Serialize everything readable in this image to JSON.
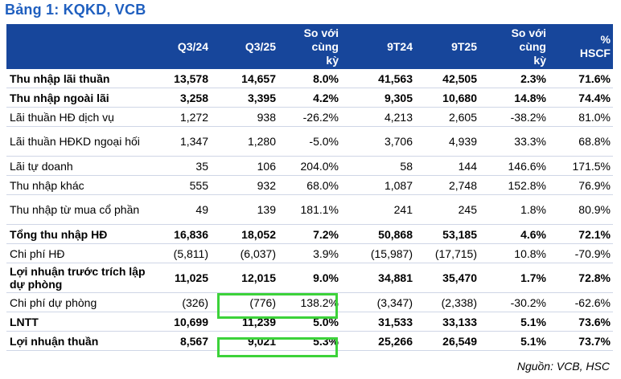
{
  "title": "Bảng 1: KQKD, VCB",
  "columns": [
    "",
    "Q3/24",
    "Q3/25",
    "So với\ncùng\nkỳ",
    "9T24",
    "9T25",
    "So với\ncùng\nkỳ",
    "%\nHSCF"
  ],
  "rows": [
    {
      "label": "Thu nhập lãi thuần",
      "bold": true,
      "cells": [
        "13,578",
        "14,657",
        "8.0%",
        "41,563",
        "42,505",
        "2.3%",
        "71.6%"
      ]
    },
    {
      "label": "Thu nhập ngoài lãi",
      "bold": true,
      "cells": [
        "3,258",
        "3,395",
        "4.2%",
        "9,305",
        "10,680",
        "14.8%",
        "74.4%"
      ]
    },
    {
      "label": "Lãi thuần HĐ dịch vụ",
      "bold": false,
      "cells": [
        "1,272",
        "938",
        "-26.2%",
        "4,213",
        "2,605",
        "-38.2%",
        "81.0%"
      ]
    },
    {
      "label": "Lãi thuần HĐKD ngoại hối",
      "bold": false,
      "tall": true,
      "cells": [
        "1,347",
        "1,280",
        "-5.0%",
        "3,706",
        "4,939",
        "33.3%",
        "68.8%"
      ]
    },
    {
      "label": "Lãi tự doanh",
      "bold": false,
      "cells": [
        "35",
        "106",
        "204.0%",
        "58",
        "144",
        "146.6%",
        "171.5%"
      ]
    },
    {
      "label": "Thu nhập khác",
      "bold": false,
      "cells": [
        "555",
        "932",
        "68.0%",
        "1,087",
        "2,748",
        "152.8%",
        "76.9%"
      ]
    },
    {
      "label": "Thu nhập từ mua cổ phần",
      "bold": false,
      "tall": true,
      "cells": [
        "49",
        "139",
        "181.1%",
        "241",
        "245",
        "1.8%",
        "80.9%"
      ]
    },
    {
      "label": "Tổng thu nhập HĐ",
      "bold": true,
      "cells": [
        "16,836",
        "18,052",
        "7.2%",
        "50,868",
        "53,185",
        "4.6%",
        "72.1%"
      ]
    },
    {
      "label": "Chi phí HĐ",
      "bold": false,
      "cells": [
        "(5,811)",
        "(6,037)",
        "3.9%",
        "(15,987)",
        "(17,715)",
        "10.8%",
        "-70.9%"
      ]
    },
    {
      "label": "Lợi nhuận trước trích lập dự phòng",
      "bold": true,
      "tall": true,
      "cells": [
        "11,025",
        "12,015",
        "9.0%",
        "34,881",
        "35,470",
        "1.7%",
        "72.8%"
      ]
    },
    {
      "label": "Chi phí dự phòng",
      "bold": false,
      "cells": [
        "(326)",
        "(776)",
        "138.2%",
        "(3,347)",
        "(2,338)",
        "-30.2%",
        "-62.6%"
      ]
    },
    {
      "label": "LNTT",
      "bold": true,
      "cells": [
        "10,699",
        "11,239",
        "5.0%",
        "31,533",
        "33,133",
        "5.1%",
        "73.6%"
      ]
    },
    {
      "label": "Lợi nhuận thuần",
      "bold": true,
      "cells": [
        "8,567",
        "9,021",
        "5.3%",
        "25,266",
        "26,549",
        "5.1%",
        "73.7%"
      ]
    }
  ],
  "source": "Nguồn: VCB, HSC",
  "colors": {
    "header_bg": "#17469b",
    "title": "#1f5fbf",
    "highlight": "#3cd23a"
  }
}
